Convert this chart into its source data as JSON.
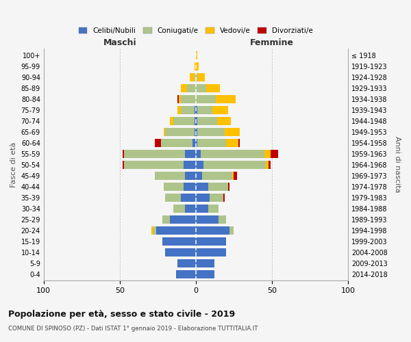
{
  "age_groups": [
    "0-4",
    "5-9",
    "10-14",
    "15-19",
    "20-24",
    "25-29",
    "30-34",
    "35-39",
    "40-44",
    "45-49",
    "50-54",
    "55-59",
    "60-64",
    "65-69",
    "70-74",
    "75-79",
    "80-84",
    "85-89",
    "90-94",
    "95-99",
    "100+"
  ],
  "birth_years": [
    "2014-2018",
    "2009-2013",
    "2004-2008",
    "1999-2003",
    "1994-1998",
    "1989-1993",
    "1984-1988",
    "1979-1983",
    "1974-1978",
    "1969-1973",
    "1964-1968",
    "1959-1963",
    "1954-1958",
    "1949-1953",
    "1944-1948",
    "1939-1943",
    "1934-1938",
    "1929-1933",
    "1924-1928",
    "1919-1923",
    "≤ 1918"
  ],
  "maschi": {
    "celibi": [
      13,
      12,
      20,
      22,
      26,
      17,
      7,
      10,
      8,
      7,
      8,
      7,
      2,
      1,
      1,
      1,
      0,
      0,
      0,
      0,
      0
    ],
    "coniugati": [
      0,
      0,
      0,
      0,
      2,
      5,
      8,
      10,
      13,
      20,
      39,
      40,
      21,
      19,
      14,
      9,
      10,
      6,
      1,
      0,
      0
    ],
    "vedovi": [
      0,
      0,
      0,
      0,
      1,
      0,
      0,
      0,
      0,
      0,
      0,
      0,
      0,
      1,
      2,
      2,
      1,
      4,
      3,
      1,
      0
    ],
    "divorziati": [
      0,
      0,
      0,
      0,
      0,
      0,
      0,
      0,
      0,
      0,
      1,
      1,
      4,
      0,
      0,
      0,
      1,
      0,
      0,
      0,
      0
    ]
  },
  "femmine": {
    "nubili": [
      12,
      12,
      20,
      20,
      22,
      15,
      8,
      9,
      8,
      4,
      5,
      3,
      1,
      1,
      1,
      1,
      0,
      0,
      0,
      0,
      0
    ],
    "coniugate": [
      0,
      0,
      0,
      0,
      3,
      5,
      7,
      9,
      13,
      20,
      41,
      42,
      19,
      18,
      13,
      10,
      13,
      7,
      1,
      0,
      0
    ],
    "vedove": [
      0,
      0,
      0,
      0,
      0,
      0,
      0,
      0,
      0,
      1,
      2,
      4,
      8,
      10,
      9,
      10,
      13,
      9,
      5,
      2,
      1
    ],
    "divorziate": [
      0,
      0,
      0,
      0,
      0,
      0,
      0,
      1,
      1,
      2,
      1,
      5,
      1,
      0,
      0,
      0,
      0,
      0,
      0,
      0,
      0
    ]
  },
  "colors": {
    "celibi": "#4472c4",
    "coniugati": "#aec48a",
    "vedovi": "#ffc000",
    "divorziati": "#c00000"
  },
  "xlim": [
    -100,
    100
  ],
  "title": "Popolazione per età, sesso e stato civile - 2019",
  "subtitle": "COMUNE DI SPINOSO (PZ) - Dati ISTAT 1° gennaio 2019 - Elaborazione TUTTITALIA.IT",
  "xlabel_left": "Maschi",
  "xlabel_right": "Femmine",
  "ylabel_left": "Fasce di età",
  "ylabel_right": "Anni di nascita",
  "bg_color": "#f5f5f5",
  "grid_color": "#bbbbbb"
}
